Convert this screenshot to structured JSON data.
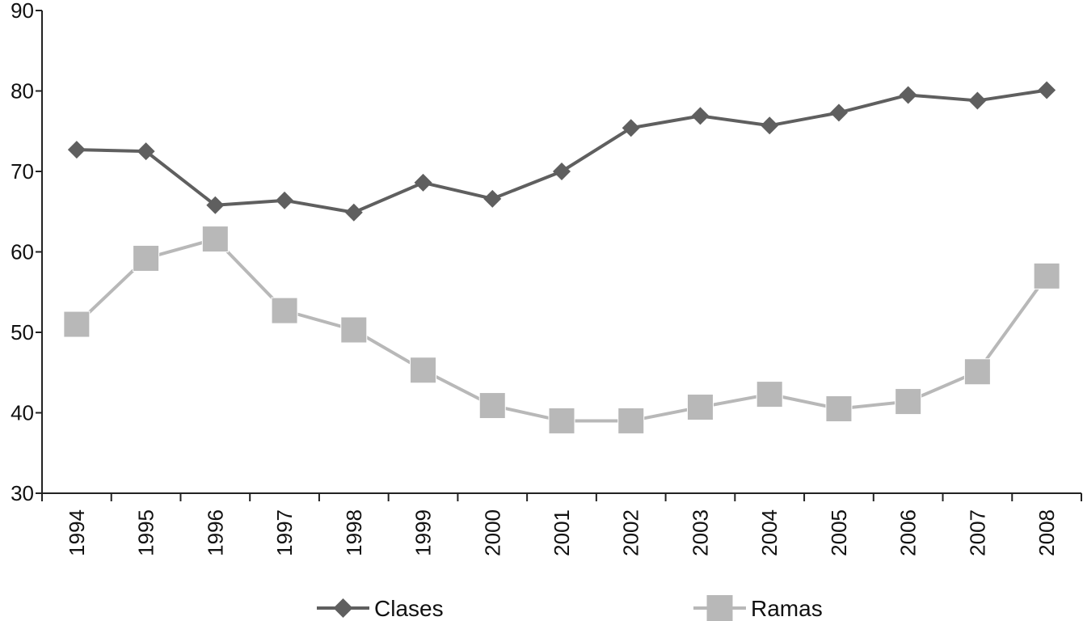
{
  "chart_data": {
    "type": "line",
    "title": "",
    "xlabel": "",
    "ylabel": "",
    "ylim": [
      30,
      90
    ],
    "yticks": [
      30,
      40,
      50,
      60,
      70,
      80,
      90
    ],
    "categories": [
      "1994",
      "1995",
      "1996",
      "1997",
      "1998",
      "1999",
      "2000",
      "2001",
      "2002",
      "2003",
      "2004",
      "2005",
      "2006",
      "2007",
      "2008"
    ],
    "grid": false,
    "legend_position": "bottom",
    "series": [
      {
        "name": "Clases",
        "marker": "diamond",
        "color": "#5f5f5f",
        "values": [
          72.7,
          72.5,
          65.8,
          66.4,
          64.9,
          68.6,
          66.6,
          70.0,
          75.4,
          76.9,
          75.7,
          77.3,
          79.5,
          78.8,
          80.1
        ]
      },
      {
        "name": "Ramas",
        "marker": "square",
        "color": "#b8b8b8",
        "values": [
          51.0,
          59.2,
          61.6,
          52.7,
          50.3,
          45.3,
          40.9,
          39.0,
          39.0,
          40.7,
          42.3,
          40.5,
          41.4,
          45.1,
          57.0
        ]
      }
    ]
  }
}
